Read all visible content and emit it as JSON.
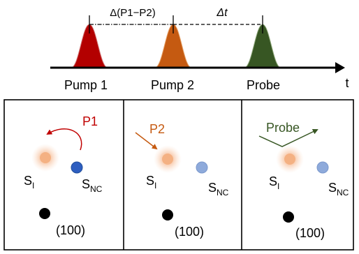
{
  "timeline": {
    "pulses": [
      {
        "label": "Pump 1",
        "color": "#b30000",
        "edge": "#d27a7a"
      },
      {
        "label": "Pump 2",
        "color": "#c55a11",
        "edge": "#e6a36a"
      },
      {
        "label": "Probe",
        "color": "#375623",
        "edge": "#8fa87b"
      }
    ],
    "delay_p1_p2": "Δ(P1−P2)",
    "delay_probe": "Δt",
    "axis_label": "t"
  },
  "panels": [
    {
      "beam_label": "P1",
      "beam_color": "#c00000",
      "site_i": "S",
      "site_i_sub": "I",
      "site_nc": "S",
      "site_nc_sub": "NC",
      "facet": "(100)"
    },
    {
      "beam_label": "P2",
      "beam_color": "#c55a11",
      "site_i": "S",
      "site_i_sub": "I",
      "site_nc": "S",
      "site_nc_sub": "NC",
      "facet": "(100)"
    },
    {
      "beam_label": "Probe",
      "beam_color": "#375623",
      "site_i": "S",
      "site_i_sub": "I",
      "site_nc": "S",
      "site_nc_sub": "NC",
      "facet": "(100)"
    }
  ],
  "colors": {
    "site_i_glow": "#f4b183",
    "site_nc_active": "#2e5ec0",
    "site_nc_faded": "#8eaadb",
    "site_100": "#000000"
  }
}
